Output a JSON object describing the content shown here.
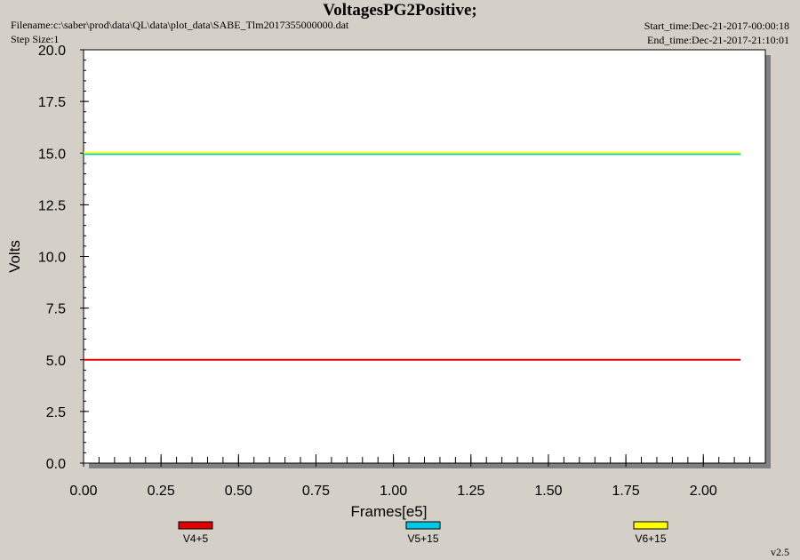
{
  "header": {
    "title": "VoltagesPG2Positive;",
    "filename": "Filename:c:\\saber\\prod\\data\\QL\\data\\plot_data\\SABE_Tlm2017355000000.dat",
    "step_size": "Step Size:1",
    "start_time": "Start_time:Dec-21-2017-00:00:18",
    "end_time": "End_time:Dec-21-2017-21:10:01"
  },
  "footer": {
    "version": "v2.5"
  },
  "chart_data": {
    "type": "line",
    "title": "VoltagesPG2Positive;",
    "xlabel": "Frames[e5]",
    "ylabel": "Volts",
    "xlim": [
      0,
      2.2
    ],
    "ylim": [
      0,
      20
    ],
    "x_ticks": [
      "0.00",
      "0.25",
      "0.50",
      "0.75",
      "1.00",
      "1.25",
      "1.50",
      "1.75",
      "2.00"
    ],
    "y_ticks": [
      "0.0",
      "2.5",
      "5.0",
      "7.5",
      "10.0",
      "12.5",
      "15.0",
      "17.5",
      "20.0"
    ],
    "grid": false,
    "legend_position": "bottom",
    "series": [
      {
        "name": "V4+5",
        "color": "#e00000",
        "x": [
          0.0,
          2.12
        ],
        "values": [
          5.0,
          5.0
        ]
      },
      {
        "name": "V5+15",
        "color": "#00c8e6",
        "x": [
          0.0,
          2.12
        ],
        "values": [
          14.95,
          14.95
        ]
      },
      {
        "name": "V6+15",
        "color": "#ffff00",
        "x": [
          0.0,
          2.12
        ],
        "values": [
          15.02,
          15.02
        ]
      }
    ]
  }
}
